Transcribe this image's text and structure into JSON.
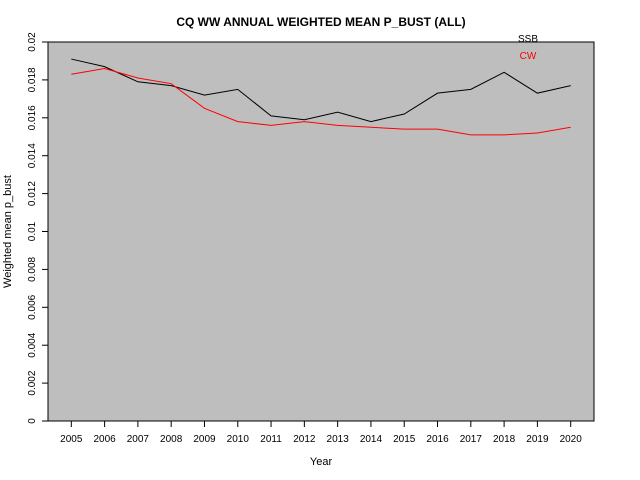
{
  "chart_data": {
    "type": "line",
    "title": "CQ WW ANNUAL WEIGHTED MEAN P_BUST (ALL)",
    "xlabel": "Year",
    "ylabel": "Weighted mean p_bust",
    "x": [
      2005,
      2006,
      2007,
      2008,
      2009,
      2010,
      2011,
      2012,
      2013,
      2014,
      2015,
      2016,
      2017,
      2018,
      2019,
      2020
    ],
    "xlim": [
      2004.3,
      2020.7
    ],
    "ylim": [
      0,
      0.02
    ],
    "yticks": [
      {
        "value": 0,
        "label": "0"
      },
      {
        "value": 0.002,
        "label": "0.002"
      },
      {
        "value": 0.004,
        "label": "0.004"
      },
      {
        "value": 0.006,
        "label": "0.006"
      },
      {
        "value": 0.008,
        "label": "0.008"
      },
      {
        "value": 0.01,
        "label": "0.01"
      },
      {
        "value": 0.012,
        "label": "0.012"
      },
      {
        "value": 0.014,
        "label": "0.014"
      },
      {
        "value": 0.016,
        "label": "0.016"
      },
      {
        "value": 0.018,
        "label": "0.018"
      },
      {
        "value": 0.02,
        "label": "0.02"
      }
    ],
    "background": "#bebebe",
    "series": [
      {
        "name": "SSB",
        "color": "#000000",
        "values": [
          0.0191,
          0.0187,
          0.0179,
          0.0177,
          0.0172,
          0.0175,
          0.0161,
          0.0159,
          0.0163,
          0.0158,
          0.0162,
          0.0173,
          0.0175,
          0.0184,
          0.0173,
          0.0177
        ]
      },
      {
        "name": "CW",
        "color": "#ff0000",
        "values": [
          0.0183,
          0.0186,
          0.0181,
          0.0178,
          0.0165,
          0.0158,
          0.0156,
          0.0158,
          0.0156,
          0.0155,
          0.0154,
          0.0154,
          0.0151,
          0.0151,
          0.0152,
          0.0155
        ]
      }
    ],
    "legend": "top-right"
  }
}
